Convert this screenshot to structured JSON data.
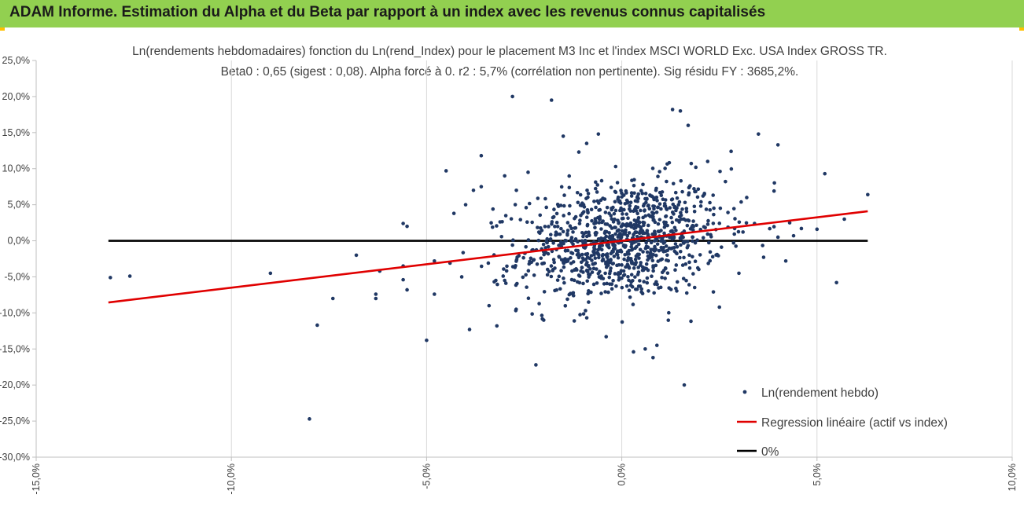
{
  "header": {
    "title": "ADAM Informe. Estimation du Alpha et du Beta par rapport à un index avec les revenus connus capitalisés"
  },
  "colors": {
    "header_bg": "#92d050",
    "accent": "#ffc000",
    "points": "#203864",
    "regression": "#e00000",
    "zero_line": "#000000"
  },
  "chart_data": {
    "type": "scatter",
    "title": "Ln(rendements hebdomadaires) fonction du Ln(rend_Index) pour le placement M3 Inc et l'index MSCI WORLD Exc. USA Index GROSS TR.",
    "subtitle": "Beta0 : 0,65  (sigest : 0,08).  Alpha forcé à 0. r2 : 5,7% (corrélation non pertinente). Sig résidu FY : 3685,2%.",
    "xlim": [
      -0.15,
      0.1
    ],
    "ylim": [
      -0.3,
      0.25
    ],
    "x_ticks": [
      "-15,0%",
      "-10,0%",
      "-5,0%",
      "0,0%",
      "5,0%",
      "10,0%"
    ],
    "y_ticks": [
      "25,0%",
      "20,0%",
      "15,0%",
      "10,0%",
      "5,0%",
      "0,0%",
      "-5,0%",
      "-10,0%",
      "-15,0%",
      "-20,0%",
      "-25,0%",
      "-30,0%"
    ],
    "grid": "vertical",
    "legend_position": "bottom-right",
    "legend": [
      "Ln(rendement hebdo)",
      "Regression linéaire (actif vs index)",
      "0%"
    ],
    "regression": {
      "name": "Regression linéaire (actif vs index)",
      "slope": 0.65,
      "intercept": 0,
      "x_range": [
        -0.1315,
        0.063
      ]
    },
    "zero_line": {
      "name": "0%",
      "y": 0,
      "x_range": [
        -0.1315,
        0.063
      ]
    },
    "points": {
      "name": "Ln(rendement hebdo)",
      "outliers": [
        [
          -0.131,
          -0.051
        ],
        [
          -0.126,
          -0.049
        ],
        [
          -0.09,
          -0.045
        ],
        [
          -0.08,
          -0.247
        ],
        [
          -0.078,
          -0.117
        ],
        [
          -0.074,
          -0.08
        ],
        [
          -0.068,
          -0.02
        ],
        [
          -0.063,
          -0.074
        ],
        [
          -0.063,
          -0.08
        ],
        [
          -0.062,
          -0.042
        ],
        [
          -0.056,
          0.024
        ],
        [
          -0.056,
          -0.054
        ],
        [
          -0.055,
          0.02
        ],
        [
          -0.055,
          -0.068
        ],
        [
          -0.056,
          -0.035
        ],
        [
          -0.05,
          -0.138
        ],
        [
          -0.048,
          -0.074
        ],
        [
          -0.048,
          -0.028
        ],
        [
          -0.045,
          0.097
        ],
        [
          -0.044,
          -0.031
        ],
        [
          -0.043,
          0.038
        ],
        [
          -0.04,
          0.05
        ],
        [
          -0.039,
          -0.123
        ],
        [
          -0.036,
          0.118
        ],
        [
          -0.036,
          0.075
        ],
        [
          -0.033,
          0.044
        ],
        [
          -0.032,
          -0.118
        ],
        [
          -0.03,
          0.09
        ],
        [
          -0.028,
          0.2
        ],
        [
          -0.024,
          0.095
        ],
        [
          -0.022,
          -0.172
        ],
        [
          -0.018,
          0.195
        ],
        [
          -0.015,
          0.145
        ],
        [
          -0.011,
          0.123
        ],
        [
          -0.006,
          0.148
        ],
        [
          0.003,
          -0.154
        ],
        [
          0.006,
          -0.15
        ],
        [
          0.008,
          -0.162
        ],
        [
          0.009,
          -0.145
        ],
        [
          0.013,
          0.182
        ],
        [
          0.015,
          0.18
        ],
        [
          0.016,
          -0.2
        ],
        [
          0.017,
          0.16
        ],
        [
          0.035,
          0.148
        ],
        [
          0.04,
          0.133
        ],
        [
          0.042,
          -0.028
        ],
        [
          0.039,
          0.069
        ],
        [
          0.043,
          0.025
        ],
        [
          0.05,
          0.016
        ],
        [
          0.052,
          0.093
        ],
        [
          0.055,
          -0.058
        ],
        [
          0.057,
          0.03
        ],
        [
          0.063,
          0.064
        ],
        [
          0.04,
          0.005
        ],
        [
          0.044,
          0.007
        ],
        [
          -0.004,
          -0.133
        ],
        [
          -0.009,
          0.135
        ],
        [
          0.034,
          0.024
        ],
        [
          0.032,
          0.06
        ],
        [
          -0.03,
          -0.055
        ],
        [
          -0.027,
          0.07
        ],
        [
          -0.034,
          -0.09
        ],
        [
          -0.038,
          0.07
        ],
        [
          -0.041,
          -0.05
        ],
        [
          0.025,
          -0.092
        ],
        [
          0.03,
          -0.045
        ],
        [
          0.046,
          0.017
        ],
        [
          -0.02,
          -0.11
        ],
        [
          0.022,
          0.11
        ],
        [
          0.028,
          0.124
        ]
      ],
      "cluster": {
        "count": 1050,
        "seed": 12345,
        "center_x": 0.0,
        "spread_x": 0.013,
        "spread_y": 0.041,
        "beta": 0.65
      }
    }
  }
}
